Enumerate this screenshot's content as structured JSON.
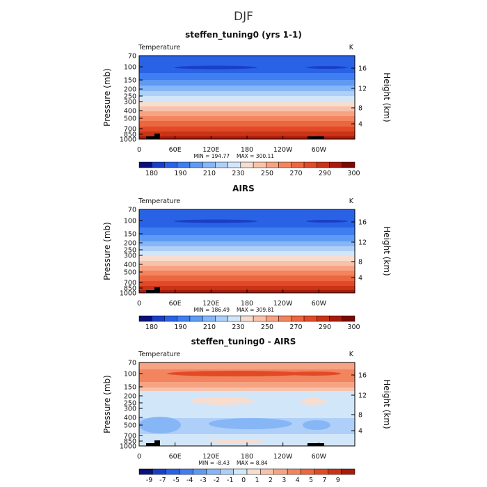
{
  "figure": {
    "title": "DJF"
  },
  "axes": {
    "left_label": "Pressure (mb)",
    "right_label": "Height (km)",
    "pressure_ticks": [
      "70",
      "100",
      "150",
      "200",
      "250",
      "300",
      "400",
      "500",
      "700",
      "850",
      "1000"
    ],
    "height_ticks": [
      "16",
      "12",
      "8",
      "4"
    ],
    "lon_ticks": [
      "0",
      "60E",
      "120E",
      "180",
      "120W",
      "60W"
    ]
  },
  "chart_data": [
    {
      "type": "heatmap",
      "title": "steffen_tuning0 (yrs 1-1)",
      "variable": "Temperature",
      "units": "K",
      "min_label": "MIN = 194.77",
      "max_label": "MAX = 300.11",
      "colorbar_labels": [
        "180",
        "190",
        "210",
        "230",
        "250",
        "270",
        "290",
        "300"
      ],
      "colors": [
        "#0b0f7a",
        "#1a3fc7",
        "#2a62e6",
        "#3f7ef0",
        "#5e9af3",
        "#86b6f6",
        "#aecff8",
        "#d2e6fa",
        "#f6ddd0",
        "#f8c2aa",
        "#f6a384",
        "#f2845e",
        "#ec6640",
        "#e24a27",
        "#c93316",
        "#a81b0c",
        "#7a0805"
      ]
    },
    {
      "type": "heatmap",
      "title": "AIRS",
      "variable": "Temperature",
      "units": "K",
      "min_label": "MIN = 186.49",
      "max_label": "MAX = 309.81",
      "colorbar_labels": [
        "180",
        "190",
        "210",
        "230",
        "250",
        "270",
        "290",
        "300"
      ],
      "colors": [
        "#0b0f7a",
        "#1a3fc7",
        "#2a62e6",
        "#3f7ef0",
        "#5e9af3",
        "#86b6f6",
        "#aecff8",
        "#d2e6fa",
        "#f6ddd0",
        "#f8c2aa",
        "#f6a384",
        "#f2845e",
        "#ec6640",
        "#e24a27",
        "#c93316",
        "#a81b0c",
        "#7a0805"
      ]
    },
    {
      "type": "heatmap",
      "title": "steffen_tuning0 - AIRS",
      "variable": "Temperature",
      "units": "K",
      "min_label": "MIN = -8.43",
      "max_label": "MAX = 8.84",
      "colorbar_labels": [
        "-9",
        "-7",
        "-5",
        "-4",
        "-3",
        "-2",
        "-1",
        "0",
        "1",
        "2",
        "3",
        "4",
        "5",
        "7",
        "9"
      ],
      "colors": [
        "#0b0f7a",
        "#1a3fc7",
        "#2a62e6",
        "#3f7ef0",
        "#5e9af3",
        "#86b6f6",
        "#aecff8",
        "#d2e6fa",
        "#f6ddd0",
        "#f8c2aa",
        "#f6a384",
        "#f2845e",
        "#ec6640",
        "#e24a27",
        "#c93316",
        "#a81b0c"
      ]
    }
  ]
}
